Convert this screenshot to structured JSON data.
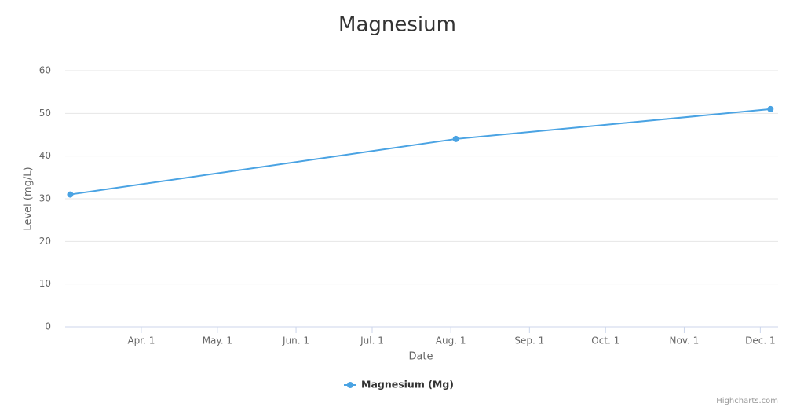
{
  "chart_data": {
    "type": "line",
    "title": "Magnesium",
    "x_label": "Date",
    "y_label": "Level (mg/L)",
    "x": [
      "03-04",
      "08-03",
      "12-05"
    ],
    "series": [
      {
        "name": "Magnesium (Mg)",
        "color": "#4aa3e3",
        "values": [
          31,
          44,
          51
        ]
      }
    ],
    "xlim": [
      "03-02",
      "12-08"
    ],
    "xticks": [
      {
        "value": "04-01",
        "label": "Apr. 1"
      },
      {
        "value": "05-01",
        "label": "May. 1"
      },
      {
        "value": "06-01",
        "label": "Jun. 1"
      },
      {
        "value": "07-01",
        "label": "Jul. 1"
      },
      {
        "value": "08-01",
        "label": "Aug. 1"
      },
      {
        "value": "09-01",
        "label": "Sep. 1"
      },
      {
        "value": "10-01",
        "label": "Oct. 1"
      },
      {
        "value": "11-01",
        "label": "Nov. 1"
      },
      {
        "value": "12-01",
        "label": "Dec. 1"
      }
    ],
    "ylim": [
      0,
      60
    ],
    "yticks": [
      0,
      10,
      20,
      30,
      40,
      50,
      60
    ],
    "grid": true,
    "legend": "bottom",
    "credits": "Highcharts.com"
  }
}
